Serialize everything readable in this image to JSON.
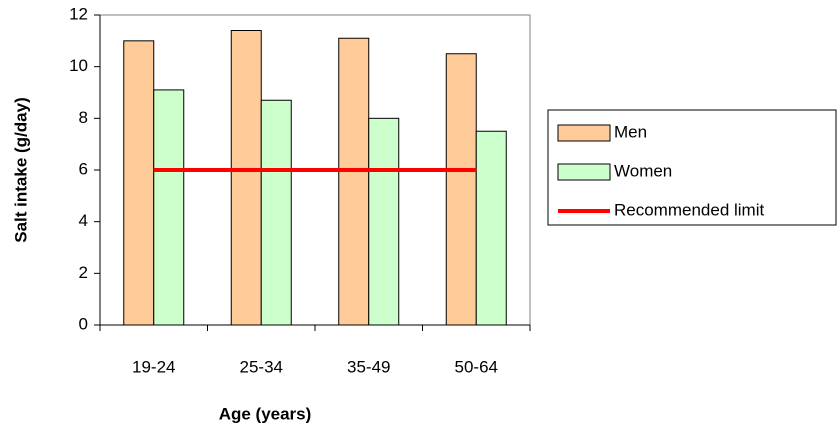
{
  "chart_data": {
    "type": "bar",
    "x_label": "Age (years)",
    "y_label": "Salt intake (g/day)",
    "categories": [
      "19-24",
      "25-34",
      "35-49",
      "50-64"
    ],
    "series": [
      {
        "name": "Men",
        "color": "#ffcc99",
        "values": [
          11.0,
          11.4,
          11.1,
          10.5
        ]
      },
      {
        "name": "Women",
        "color": "#ccffcc",
        "values": [
          9.1,
          8.7,
          8.0,
          7.5
        ]
      },
      {
        "name": "Recommended limit",
        "color": "#ff0000",
        "type": "line",
        "values": [
          6,
          6,
          6,
          6
        ]
      }
    ],
    "ylim": [
      0,
      12
    ],
    "yticks": [
      0,
      2,
      4,
      6,
      8,
      10,
      12
    ],
    "grid": false
  }
}
